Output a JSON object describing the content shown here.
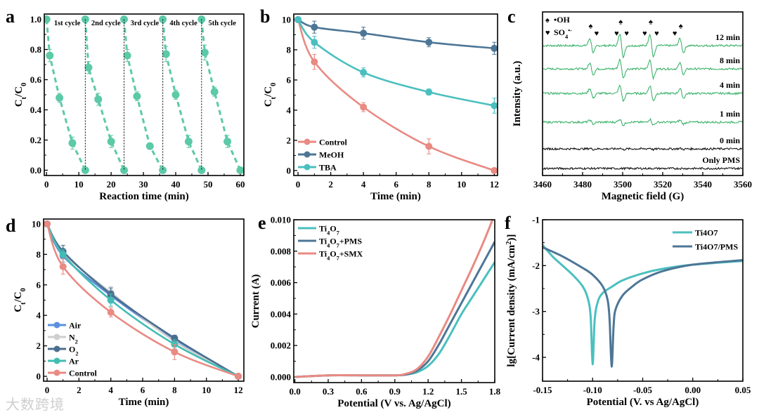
{
  "watermark": "大数跨境",
  "colors": {
    "teal": "#5cc9a7",
    "control": "#e98a83",
    "meoh": "#4d7696",
    "tba": "#4bbfbf",
    "air": "#5b8fe0",
    "n2": "#cfcfcf",
    "o2": "#4a6f8e",
    "ar": "#43bdb3",
    "epr": "#3db36b",
    "black": "#111111"
  },
  "chart_data": [
    {
      "id": "a",
      "panel_label": "a",
      "type": "scatter",
      "xlabel": "Reaction time (min)",
      "ylabel": "C_{t}/C_{0}",
      "xlim": [
        -0.7,
        61.1
      ],
      "ylim": [
        -0.035,
        1.035
      ],
      "xticks": [
        0,
        10,
        20,
        30,
        40,
        50,
        60
      ],
      "yticks": [
        0.0,
        0.2,
        0.4,
        0.6,
        0.8,
        1.0
      ],
      "ytick_fmt": 1,
      "annotations": [
        "1st cycle",
        "2nd cycle",
        "3rd cycle",
        "4th cycle",
        "5th cycle"
      ],
      "dividers": [
        12,
        24,
        36,
        48
      ],
      "series": [
        {
          "name": "1st cycle",
          "color": "teal",
          "style": "dashed",
          "x": [
            0,
            1,
            4,
            8,
            12
          ],
          "y": [
            1.0,
            0.76,
            0.48,
            0.18,
            0.0
          ],
          "err": [
            0,
            0.04,
            0.03,
            0.04,
            0
          ]
        },
        {
          "name": "2nd cycle",
          "color": "teal",
          "style": "dashed",
          "x": [
            12,
            13,
            16,
            20,
            24
          ],
          "y": [
            1.0,
            0.68,
            0.47,
            0.19,
            0.0
          ],
          "err": [
            0,
            0.04,
            0.04,
            0.04,
            0
          ]
        },
        {
          "name": "3rd cycle",
          "color": "teal",
          "style": "dashed",
          "x": [
            24,
            25,
            28,
            32,
            36
          ],
          "y": [
            1.0,
            0.76,
            0.49,
            0.16,
            0.0
          ],
          "err": [
            0,
            0.04,
            0.03,
            0.02,
            0
          ]
        },
        {
          "name": "4th cycle",
          "color": "teal",
          "style": "dashed",
          "x": [
            36,
            37,
            40,
            44,
            48
          ],
          "y": [
            1.0,
            0.77,
            0.5,
            0.19,
            0.0
          ],
          "err": [
            0,
            0.05,
            0.03,
            0.04,
            0
          ]
        },
        {
          "name": "5th cycle",
          "color": "teal",
          "style": "dashed",
          "x": [
            48,
            49,
            52,
            56,
            60
          ],
          "y": [
            1.0,
            0.78,
            0.52,
            0.19,
            0.0
          ],
          "err": [
            0,
            0.05,
            0.03,
            0.04,
            0
          ]
        }
      ]
    },
    {
      "id": "b",
      "panel_label": "b",
      "type": "line",
      "xlabel": "Time (min)",
      "ylabel": "C_{t}/C_{0}",
      "xlim": [
        -0.26,
        12.2
      ],
      "ylim": [
        -0.33,
        10.37
      ],
      "xticks": [
        0,
        2,
        4,
        6,
        8,
        10,
        12
      ],
      "yticks": [
        0,
        2,
        4,
        6,
        8,
        10
      ],
      "ytick_fmt": 0,
      "legend": "bottom-left",
      "series": [
        {
          "name": "Control",
          "color": "control",
          "style": "smooth",
          "x": [
            0,
            1,
            4,
            8,
            12
          ],
          "y": [
            10,
            7.2,
            4.2,
            1.6,
            0
          ],
          "err": [
            0,
            0.5,
            0.3,
            0.5,
            0
          ]
        },
        {
          "name": "MeOH",
          "color": "meoh",
          "style": "smooth",
          "x": [
            0,
            1,
            4,
            8,
            12
          ],
          "y": [
            10,
            9.5,
            9.1,
            8.5,
            8.1
          ],
          "err": [
            0,
            0.4,
            0.4,
            0.3,
            0.4
          ]
        },
        {
          "name": "TBA",
          "color": "tba",
          "style": "smooth",
          "x": [
            0,
            1,
            4,
            8,
            12
          ],
          "y": [
            10,
            8.5,
            6.5,
            5.2,
            4.3
          ],
          "err": [
            0,
            0.4,
            0.3,
            0.2,
            0.5
          ]
        }
      ]
    },
    {
      "id": "c",
      "panel_label": "c",
      "type": "line",
      "xlabel": "Magnetic field (G)",
      "ylabel": "Intensity (a.u.)",
      "xlim": [
        3460,
        3560
      ],
      "ylim": [
        0,
        10
      ],
      "xticks": [
        3460,
        3480,
        3500,
        3520,
        3540,
        3560
      ],
      "yticks": [],
      "legend_items": [
        {
          "symbol": "♠",
          "label": "•OH"
        },
        {
          "symbol": "♥",
          "label": "SO_{4}^{•-}"
        }
      ],
      "oh_markers": [
        3484,
        3499,
        3514,
        3529
      ],
      "so4_markers": [
        3487,
        3497,
        3502,
        3511,
        3517,
        3526
      ],
      "peaks": [
        3484.5,
        3499.5,
        3514.5,
        3529.5
      ],
      "peak_ratio": [
        1,
        1.6,
        1.6,
        1
      ],
      "series": [
        {
          "name": "12 min",
          "color": "epr",
          "offset": 7.94,
          "amplitude": 0.45
        },
        {
          "name": "8 min",
          "color": "epr",
          "offset": 6.52,
          "amplitude": 0.36
        },
        {
          "name": "4 min",
          "color": "epr",
          "offset": 5.02,
          "amplitude": 0.3
        },
        {
          "name": "1 min",
          "color": "epr",
          "offset": 3.26,
          "amplitude": 0.12
        },
        {
          "name": "0 min",
          "color": "black",
          "offset": 1.63,
          "amplitude": 0.03
        },
        {
          "name": "Only PMS",
          "color": "black",
          "offset": 0.43,
          "amplitude": 0.0
        }
      ]
    },
    {
      "id": "d",
      "panel_label": "d",
      "type": "line",
      "xlabel": "Time (min)",
      "ylabel": "C_{t}/C_{0}",
      "xlim": [
        -0.22,
        12.35
      ],
      "ylim": [
        -0.32,
        10.32
      ],
      "xticks": [
        0,
        2,
        4,
        6,
        8,
        10,
        12
      ],
      "yticks": [
        0,
        2,
        4,
        6,
        8,
        10
      ],
      "ytick_fmt": 0,
      "legend": "bottom-left",
      "series": [
        {
          "name": "Air",
          "color": "air",
          "style": "smooth",
          "x": [
            0,
            1,
            4,
            8,
            12
          ],
          "y": [
            10,
            7.9,
            5.3,
            2.4,
            0
          ],
          "err": [
            0,
            0.4,
            0.5,
            0.3,
            0
          ]
        },
        {
          "name": "N_{2}",
          "color": "n2",
          "style": "smooth",
          "x": [
            0,
            1,
            4,
            8,
            12
          ],
          "y": [
            10,
            8.1,
            5.5,
            2.3,
            0
          ],
          "err": [
            0,
            0.4,
            0.4,
            0.3,
            0
          ]
        },
        {
          "name": "O_{2}",
          "color": "o2",
          "style": "smooth",
          "x": [
            0,
            1,
            4,
            8,
            12
          ],
          "y": [
            10,
            8.2,
            5.4,
            2.5,
            0
          ],
          "err": [
            0,
            0.4,
            0.4,
            0.2,
            0
          ]
        },
        {
          "name": "Ar",
          "color": "ar",
          "style": "smooth",
          "x": [
            0,
            1,
            4,
            8,
            12
          ],
          "y": [
            10,
            8.0,
            5.0,
            2.1,
            0
          ],
          "err": [
            0,
            0.3,
            0.4,
            0.3,
            0
          ]
        },
        {
          "name": "Control",
          "color": "control",
          "style": "smooth",
          "x": [
            0,
            1,
            4,
            8,
            12
          ],
          "y": [
            10,
            7.2,
            4.2,
            1.6,
            0
          ],
          "err": [
            0,
            0.5,
            0.3,
            0.5,
            0
          ]
        }
      ]
    },
    {
      "id": "e",
      "panel_label": "e",
      "type": "line",
      "xlabel": "Potential (V vs. Ag/AgCl)",
      "ylabel": "Current (A)",
      "xlim": [
        -0.01,
        1.8
      ],
      "ylim": [
        -0.00036,
        0.01
      ],
      "xticks": [
        0.0,
        0.3,
        0.6,
        0.9,
        1.2,
        1.5,
        1.8
      ],
      "yticks": [
        0.0,
        0.002,
        0.004,
        0.006,
        0.008,
        0.01
      ],
      "ytick_fmt": 3,
      "xtick_fmt": 1,
      "legend": "top-left",
      "series": [
        {
          "name": "Ti_{4}O_{7}",
          "color": "tba",
          "style": "line",
          "x": [
            0,
            0.3,
            0.6,
            0.9,
            1.0,
            1.1,
            1.2,
            1.3,
            1.4,
            1.5,
            1.6,
            1.7,
            1.8
          ],
          "y": [
            0,
            0.0001,
            0.0001,
            0.0001,
            0.00015,
            0.0003,
            0.0007,
            0.0015,
            0.0027,
            0.004,
            0.0051,
            0.0062,
            0.0073
          ]
        },
        {
          "name": "Ti_{4}O_{7}+PMS",
          "color": "meoh",
          "style": "line",
          "x": [
            0,
            0.3,
            0.6,
            0.9,
            1.0,
            1.1,
            1.2,
            1.3,
            1.4,
            1.5,
            1.6,
            1.7,
            1.8
          ],
          "y": [
            0,
            0.0001,
            0.0001,
            0.0001,
            0.00015,
            0.0004,
            0.001,
            0.0021,
            0.0034,
            0.0047,
            0.006,
            0.0073,
            0.0086
          ]
        },
        {
          "name": "Ti_{4}O_{7}+SMX",
          "color": "control",
          "style": "line",
          "x": [
            0,
            0.3,
            0.6,
            0.9,
            1.0,
            1.1,
            1.2,
            1.3,
            1.4,
            1.5,
            1.6,
            1.7,
            1.78
          ],
          "y": [
            0,
            0.0001,
            0.0001,
            0.0001,
            0.0002,
            0.0005,
            0.0013,
            0.0026,
            0.004,
            0.0055,
            0.007,
            0.0086,
            0.01
          ]
        }
      ]
    },
    {
      "id": "f",
      "panel_label": "f",
      "type": "line",
      "xlabel": "Potential (V. vs Ag/AgCl)",
      "ylabel": "lg[Current density (mA/cm^{2})]",
      "xlim": [
        -0.15,
        0.05
      ],
      "ylim": [
        -4.52,
        -1
      ],
      "xticks": [
        -0.15,
        -0.1,
        -0.05,
        0.0,
        0.05
      ],
      "yticks": [
        -4,
        -3,
        -2,
        -1
      ],
      "ytick_fmt": 0,
      "xtick_fmt": 2,
      "legend": "top-right",
      "series": [
        {
          "name": "Ti4O7",
          "color": "tba",
          "style": "line",
          "x": [
            -0.15,
            -0.14,
            -0.13,
            -0.12,
            -0.11,
            -0.105,
            -0.102,
            -0.1,
            -0.098,
            -0.095,
            -0.09,
            -0.08,
            -0.07,
            -0.05,
            -0.03,
            0,
            0.05
          ],
          "y": [
            -1.55,
            -1.8,
            -2.0,
            -2.2,
            -2.45,
            -2.7,
            -3.1,
            -4.15,
            -3.2,
            -2.8,
            -2.6,
            -2.45,
            -2.32,
            -2.17,
            -2.07,
            -1.98,
            -1.9
          ]
        },
        {
          "name": "Ti4O7/PMS",
          "color": "meoh",
          "style": "line",
          "x": [
            -0.15,
            -0.13,
            -0.11,
            -0.1,
            -0.09,
            -0.085,
            -0.083,
            -0.081,
            -0.079,
            -0.077,
            -0.07,
            -0.06,
            -0.05,
            -0.03,
            0,
            0.05
          ],
          "y": [
            -1.6,
            -1.8,
            -2.05,
            -2.2,
            -2.45,
            -2.75,
            -3.2,
            -4.2,
            -3.3,
            -2.95,
            -2.65,
            -2.45,
            -2.3,
            -2.12,
            -1.98,
            -1.88
          ]
        }
      ]
    }
  ]
}
